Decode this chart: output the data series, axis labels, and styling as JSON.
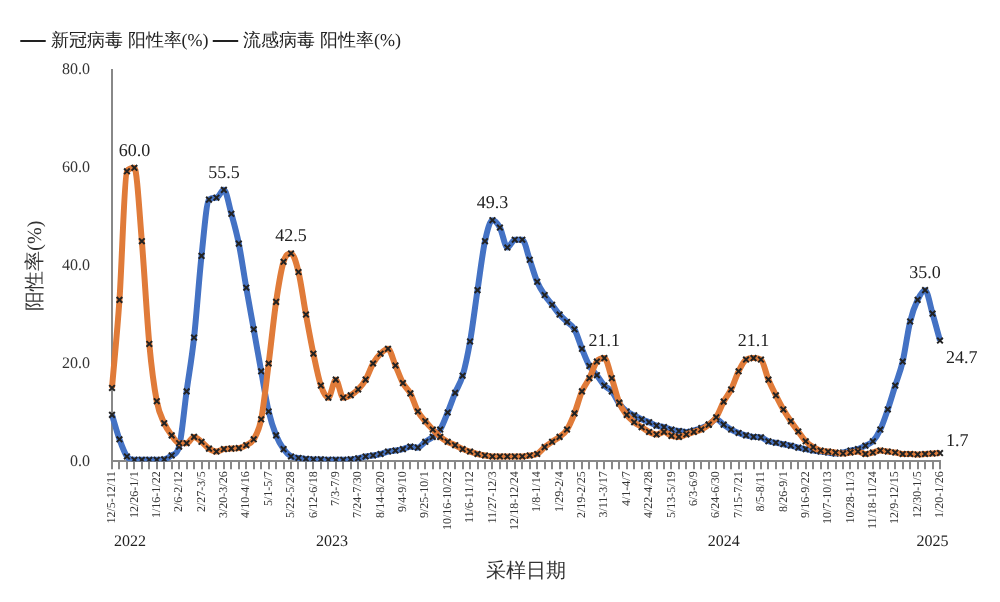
{
  "chart_data": {
    "type": "line",
    "xlabel": "采样日期",
    "ylabel": "阳性率(%)",
    "categories": [
      "12/5-12/11",
      null,
      null,
      "12/26-1/1",
      null,
      null,
      "1/16-1/22",
      null,
      null,
      "2/6-2/12",
      null,
      null,
      "2/27-3/5",
      null,
      null,
      "3/20-3/26",
      null,
      null,
      "4/10-4/16",
      null,
      null,
      "5/1-5/7",
      null,
      null,
      "5/22-5/28",
      null,
      null,
      "6/12-6/18",
      null,
      null,
      "7/3-7/9",
      null,
      null,
      "7/24-7/30",
      null,
      null,
      "8/14-8/20",
      null,
      null,
      "9/4-9/10",
      null,
      null,
      "9/25-10/1",
      null,
      null,
      "10/16-10/22",
      null,
      null,
      "11/6-11/12",
      null,
      null,
      "11/27-12/3",
      null,
      null,
      "12/18-12/24",
      null,
      null,
      "1/8-1/14",
      null,
      null,
      "1/29-2/4",
      null,
      null,
      "2/19-2/25",
      null,
      null,
      "3/11-3/17",
      null,
      null,
      "4/1-4/7",
      null,
      null,
      "4/22-4/28",
      null,
      null,
      "5/13-5/19",
      null,
      null,
      "6/3-6/9",
      null,
      null,
      "6/24-6/30",
      null,
      null,
      "7/15-7/21",
      null,
      null,
      "8/5-8/11",
      null,
      null,
      "8/26-9/1",
      null,
      null,
      "9/16-9/22",
      null,
      null,
      "10/7-10/13",
      null,
      null,
      "10/28-11/3",
      null,
      null,
      "11/18-11/24",
      null,
      null,
      "12/9-12/15",
      null,
      null,
      "12/30-1/5",
      null,
      null,
      "1/20-1/26"
    ],
    "series": [
      {
        "name": "新冠病毒 阳性率(%)",
        "color": "#e07b39",
        "values": [
          15,
          33,
          59.3,
          60,
          45,
          24,
          12.3,
          7.8,
          5.3,
          3.7,
          3.7,
          5,
          4,
          2.6,
          2,
          2.5,
          2.6,
          2.7,
          3.3,
          4.5,
          8.6,
          20,
          32.6,
          40.8,
          42.5,
          38.7,
          30,
          22,
          15.5,
          13,
          16.7,
          13,
          13.5,
          14.7,
          16.7,
          20,
          22,
          23,
          19.6,
          16,
          13.9,
          10.2,
          8.2,
          6.5,
          5,
          4,
          3.3,
          2.5,
          2,
          1.5,
          1.2,
          1,
          1,
          1,
          1,
          1,
          1.2,
          1.5,
          2.9,
          4,
          5,
          6.5,
          9.8,
          14.3,
          17,
          20.4,
          21.1,
          17,
          12,
          9.5,
          8,
          7,
          6,
          5.5,
          6,
          5.2,
          5,
          5.5,
          6,
          6.5,
          7.5,
          9,
          12.2,
          14.7,
          18.4,
          20.8,
          21.1,
          20.8,
          16.7,
          13.5,
          10.6,
          8.2,
          6.1,
          4.1,
          2.9,
          2.2,
          2,
          1.8,
          1.6,
          1.8,
          2,
          1.5,
          1.8,
          2.2,
          2,
          1.8,
          1.5,
          1.5,
          1.4,
          1.5,
          1.6,
          1.7
        ],
        "value_labels": [
          null,
          null,
          null,
          "60.0",
          null,
          null,
          null,
          null,
          null,
          null,
          null,
          null,
          null,
          null,
          null,
          null,
          null,
          null,
          null,
          null,
          null,
          null,
          null,
          null,
          "42.5",
          null,
          null,
          null,
          null,
          null,
          null,
          null,
          null,
          null,
          null,
          null,
          null,
          null,
          null,
          null,
          null,
          null,
          null,
          null,
          null,
          null,
          null,
          null,
          null,
          null,
          null,
          null,
          null,
          null,
          null,
          null,
          null,
          null,
          null,
          null,
          null,
          null,
          null,
          null,
          null,
          null,
          "21.1",
          null,
          null,
          null,
          null,
          null,
          null,
          null,
          null,
          null,
          null,
          null,
          null,
          null,
          null,
          null,
          null,
          null,
          null,
          null,
          "21.1",
          null,
          null,
          null,
          null,
          null,
          null,
          null,
          null,
          null,
          null,
          null,
          null,
          null,
          null,
          null,
          null,
          null,
          null,
          null,
          null,
          null,
          null,
          null,
          null,
          "1.7"
        ]
      },
      {
        "name": "流感病毒 阳性率(%)",
        "color": "#4472c4",
        "values": [
          9.5,
          4.5,
          1,
          0.3,
          0.3,
          0.3,
          0.3,
          0.4,
          1.2,
          3,
          14.3,
          25.3,
          42,
          53.5,
          53.9,
          55.5,
          50.6,
          44.5,
          35.5,
          27,
          18.4,
          10.2,
          5.3,
          2.5,
          1,
          0.7,
          0.5,
          0.4,
          0.4,
          0.3,
          0.3,
          0.3,
          0.4,
          0.6,
          1,
          1.2,
          1.5,
          2,
          2.2,
          2.5,
          3,
          2.8,
          4,
          5,
          6.5,
          10,
          14,
          17.5,
          24.5,
          35,
          45,
          49.3,
          47.8,
          43.7,
          45.3,
          45.3,
          41.2,
          36.7,
          34,
          32,
          30,
          28.5,
          27,
          23,
          19.5,
          17.6,
          15.5,
          14.3,
          11.8,
          10.2,
          9.4,
          8.6,
          8,
          7.3,
          7,
          6.5,
          6.2,
          6,
          6.3,
          6.8,
          7.5,
          8.6,
          7.5,
          6.5,
          5.8,
          5.3,
          5,
          4.9,
          4.1,
          3.8,
          3.5,
          3.2,
          2.8,
          2.5,
          2.2,
          2,
          1.8,
          1.6,
          1.8,
          2.2,
          2.5,
          3.2,
          4.1,
          6.5,
          10.6,
          15.5,
          20.4,
          28.6,
          33,
          35,
          30.2,
          24.7
        ],
        "value_labels": [
          null,
          null,
          null,
          null,
          null,
          null,
          null,
          null,
          null,
          null,
          null,
          null,
          null,
          null,
          null,
          "55.5",
          null,
          null,
          null,
          null,
          null,
          null,
          null,
          null,
          null,
          null,
          null,
          null,
          null,
          null,
          null,
          null,
          null,
          null,
          null,
          null,
          null,
          null,
          null,
          null,
          null,
          null,
          null,
          null,
          null,
          null,
          null,
          null,
          null,
          null,
          null,
          "49.3",
          null,
          null,
          null,
          null,
          null,
          null,
          null,
          null,
          null,
          null,
          null,
          null,
          null,
          null,
          null,
          null,
          null,
          null,
          null,
          null,
          null,
          null,
          null,
          null,
          null,
          null,
          null,
          null,
          null,
          null,
          null,
          null,
          null,
          null,
          null,
          null,
          null,
          null,
          null,
          null,
          null,
          null,
          null,
          null,
          null,
          null,
          null,
          null,
          null,
          null,
          null,
          null,
          null,
          null,
          null,
          null,
          null,
          "35.0",
          null,
          "24.7"
        ]
      }
    ],
    "ylim": [
      0,
      80
    ],
    "yticks": [
      {
        "value": 0,
        "label": "0.0"
      },
      {
        "value": 20,
        "label": "20.0"
      },
      {
        "value": 40,
        "label": "40.0"
      },
      {
        "value": 60,
        "label": "60.0"
      },
      {
        "value": 80,
        "label": "80.0"
      }
    ],
    "annotations": [
      "2022",
      "2023",
      "2024",
      "2025"
    ],
    "marker": "cross",
    "line_style": "solid",
    "grid": false,
    "legend": "top left"
  }
}
